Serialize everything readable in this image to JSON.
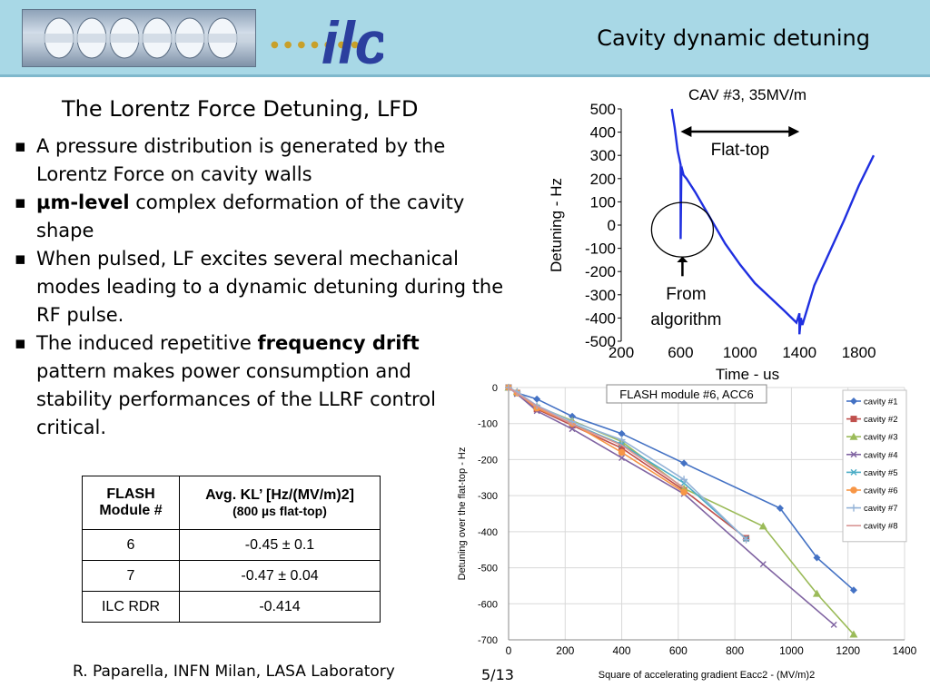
{
  "header": {
    "title": "Cavity dynamic detuning",
    "logo_text": "ilc"
  },
  "subtitle": "The Lorentz Force Detuning, LFD",
  "bullets": {
    "b1": "A pressure distribution is generated by the Lorentz Force on cavity walls",
    "b2_bold": "µm-level",
    "b2_rest": " complex deformation of the cavity shape",
    "b3": "When pulsed, LF excites several mechanical modes leading to a dynamic detuning during the RF pulse.",
    "b4_pre": "The induced repetitive ",
    "b4_bold": "frequency drift",
    "b4_post": " pattern makes power consumption and stability performances of the LLRF control critical."
  },
  "table": {
    "header_col1": "FLASH Module #",
    "header_col2_main": "Avg. KL’ [Hz/(MV/m)2]",
    "header_col2_sub": "(800 µs flat-top)",
    "rows": [
      {
        "module": "6",
        "value": "-0.45 ± 0.1"
      },
      {
        "module": "7",
        "value": "-0.47 ± 0.04"
      },
      {
        "module": "ILC RDR",
        "value": "-0.414"
      }
    ]
  },
  "footer": {
    "author": "R. Paparella, INFN Milan, LASA Laboratory",
    "page": "5/13"
  },
  "chart_data": [
    {
      "type": "line",
      "title": "CAV #3, 35MV/m",
      "xlabel": "Time - us",
      "ylabel": "Detuning - Hz",
      "xlim": [
        200,
        1900
      ],
      "ylim": [
        -500,
        500
      ],
      "xticks": [
        200,
        600,
        1000,
        1400,
        1800
      ],
      "xtick_labels": [
        "200",
        "600",
        "1000",
        "1400",
        "1800"
      ],
      "yticks": [
        500,
        400,
        300,
        200,
        100,
        0,
        -100,
        -200,
        -300,
        -400,
        -500
      ],
      "ytick_labels": [
        "500",
        "400",
        "300",
        "200",
        "100",
        "0",
        "-100",
        "-200",
        "-300",
        "-400",
        "-500"
      ],
      "grid": false,
      "color": "#1f2fe0",
      "series": [
        {
          "x": [
            540,
            560,
            580,
            600,
            600,
            605,
            610,
            620,
            640,
            700,
            800,
            900,
            1000,
            1100,
            1200,
            1300,
            1380,
            1400,
            1400,
            1410,
            1420,
            1500,
            1600,
            1700,
            1800,
            1900
          ],
          "y": [
            500,
            420,
            320,
            260,
            -60,
            230,
            240,
            215,
            200,
            140,
            30,
            -80,
            -170,
            -250,
            -310,
            -370,
            -420,
            -380,
            -470,
            -400,
            -430,
            -260,
            -120,
            20,
            170,
            300
          ]
        }
      ],
      "annotations": [
        {
          "text": "Flat-top"
        },
        {
          "text": "From algorithm"
        }
      ]
    },
    {
      "type": "line",
      "title": "FLASH module #6, ACC6",
      "xlabel": "Square of accelerating gradient Eacc2 - (MV/m)2",
      "ylabel": "Detuning over the flat-top - Hz",
      "xlim": [
        0,
        1400
      ],
      "ylim": [
        -700,
        0
      ],
      "xticks": [
        0,
        200,
        400,
        600,
        800,
        1000,
        1200,
        1400
      ],
      "xtick_labels": [
        "0",
        "200",
        "400",
        "600",
        "800",
        "1000",
        "1200",
        "1400"
      ],
      "yticks": [
        0,
        -100,
        -200,
        -300,
        -400,
        -500,
        -600,
        -700
      ],
      "ytick_labels": [
        "0",
        "-100",
        "-200",
        "-300",
        "-400",
        "-500",
        "-600",
        "-700"
      ],
      "grid": true,
      "legend": "right",
      "series": [
        {
          "name": "cavity #1",
          "color": "#4472c4",
          "marker": "diamond",
          "x": [
            0,
            30,
            100,
            225,
            400,
            620,
            960,
            1090,
            1220
          ],
          "y": [
            0,
            -15,
            -32,
            -80,
            -128,
            -210,
            -335,
            -472,
            -562
          ]
        },
        {
          "name": "cavity #2",
          "color": "#c0504d",
          "marker": "square",
          "x": [
            0,
            30,
            100,
            225,
            400,
            620,
            840
          ],
          "y": [
            0,
            -15,
            -60,
            -105,
            -168,
            -285,
            -418
          ]
        },
        {
          "name": "cavity #3",
          "color": "#9bbb59",
          "marker": "triangle",
          "x": [
            0,
            30,
            100,
            225,
            400,
            620,
            900,
            1090,
            1220
          ],
          "y": [
            0,
            -12,
            -52,
            -92,
            -150,
            -280,
            -385,
            -572,
            -685
          ]
        },
        {
          "name": "cavity #4",
          "color": "#8064a2",
          "marker": "x",
          "x": [
            0,
            30,
            100,
            225,
            400,
            620,
            900,
            1150
          ],
          "y": [
            0,
            -18,
            -65,
            -115,
            -195,
            -295,
            -490,
            -658
          ]
        },
        {
          "name": "cavity #5",
          "color": "#4bacc6",
          "marker": "x",
          "x": [
            0,
            30,
            100,
            225,
            400,
            620,
            840
          ],
          "y": [
            0,
            -15,
            -55,
            -100,
            -158,
            -265,
            -420
          ]
        },
        {
          "name": "cavity #6",
          "color": "#f79646",
          "marker": "circle",
          "x": [
            0,
            30,
            100,
            225,
            400,
            620
          ],
          "y": [
            0,
            -15,
            -57,
            -100,
            -180,
            -290
          ]
        },
        {
          "name": "cavity #7",
          "color": "#95b3d7",
          "marker": "plus",
          "x": [
            0,
            30,
            100,
            225,
            400,
            620,
            840
          ],
          "y": [
            0,
            -12,
            -50,
            -95,
            -145,
            -255,
            -422
          ]
        },
        {
          "name": "cavity #8",
          "color": "#d99594",
          "marker": "none",
          "x": [
            0,
            30,
            100,
            225,
            400,
            620
          ],
          "y": [
            0,
            -16,
            -52,
            -102,
            -160,
            -278
          ]
        }
      ]
    }
  ]
}
